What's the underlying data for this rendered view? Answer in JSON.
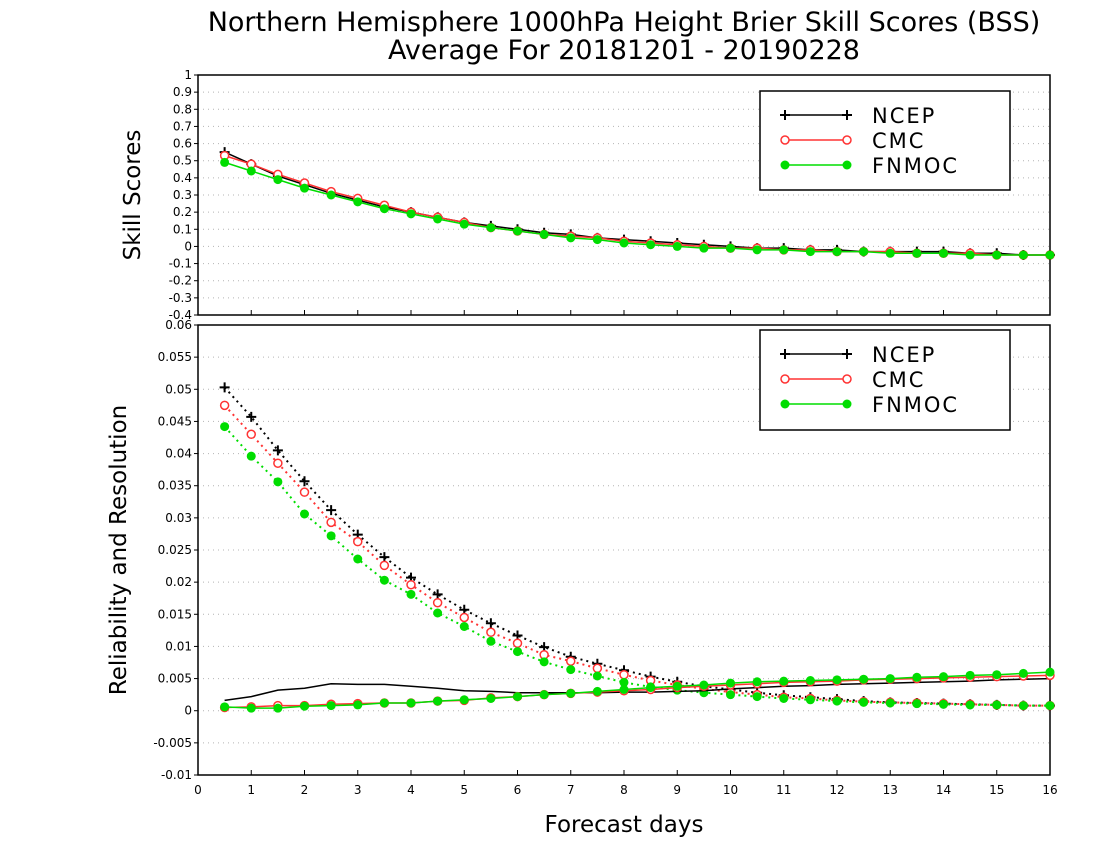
{
  "title_line1": "Northern Hemisphere 1000hPa Height Brier Skill Scores (BSS)",
  "title_line2": "Average For 20181201 - 20190228",
  "xlabel": "Forecast days",
  "series_colors": {
    "NCEP": "#000000",
    "CMC": "#ff3333",
    "FNMOC": "#00dd00"
  },
  "chart_data": [
    {
      "type": "line",
      "ylabel": "Skill Scores",
      "xlim": [
        0,
        16
      ],
      "ylim": [
        -0.4,
        1
      ],
      "yticks": [
        "-0.4",
        "-0.3",
        "-0.2",
        "-0.1",
        "0",
        "0.1",
        "0.2",
        "0.3",
        "0.4",
        "0.5",
        "0.6",
        "0.7",
        "0.8",
        "0.9",
        "1"
      ],
      "xticks": [
        "0",
        "1",
        "2",
        "3",
        "4",
        "5",
        "6",
        "7",
        "8",
        "9",
        "10",
        "11",
        "12",
        "13",
        "14",
        "15",
        "16"
      ],
      "grid": true,
      "legend_position": "top-right",
      "x": [
        0.5,
        1,
        1.5,
        2,
        2.5,
        3,
        3.5,
        4,
        4.5,
        5,
        5.5,
        6,
        6.5,
        7,
        7.5,
        8,
        8.5,
        9,
        9.5,
        10,
        10.5,
        11,
        11.5,
        12,
        12.5,
        13,
        13.5,
        14,
        14.5,
        15,
        15.5,
        16
      ],
      "series": [
        {
          "name": "NCEP",
          "marker": "plus",
          "line": "solid",
          "values": [
            0.55,
            0.48,
            0.41,
            0.36,
            0.31,
            0.27,
            0.23,
            0.2,
            0.17,
            0.14,
            0.12,
            0.1,
            0.08,
            0.07,
            0.05,
            0.04,
            0.03,
            0.02,
            0.01,
            0.0,
            -0.01,
            -0.01,
            -0.02,
            -0.02,
            -0.03,
            -0.03,
            -0.03,
            -0.03,
            -0.04,
            -0.04,
            -0.05,
            -0.05
          ]
        },
        {
          "name": "CMC",
          "marker": "open-circle",
          "line": "solid",
          "values": [
            0.53,
            0.48,
            0.42,
            0.37,
            0.32,
            0.28,
            0.24,
            0.2,
            0.17,
            0.14,
            0.11,
            0.09,
            0.07,
            0.06,
            0.05,
            0.03,
            0.02,
            0.01,
            0.0,
            -0.01,
            -0.01,
            -0.02,
            -0.02,
            -0.03,
            -0.03,
            -0.03,
            -0.04,
            -0.04,
            -0.04,
            -0.05,
            -0.05,
            -0.05
          ]
        },
        {
          "name": "FNMOC",
          "marker": "filled-circle",
          "line": "solid",
          "values": [
            0.49,
            0.44,
            0.39,
            0.34,
            0.3,
            0.26,
            0.22,
            0.19,
            0.16,
            0.13,
            0.11,
            0.09,
            0.07,
            0.05,
            0.04,
            0.02,
            0.01,
            0.0,
            -0.01,
            -0.01,
            -0.02,
            -0.02,
            -0.03,
            -0.03,
            -0.03,
            -0.04,
            -0.04,
            -0.04,
            -0.05,
            -0.05,
            -0.05,
            -0.05
          ]
        }
      ]
    },
    {
      "type": "line",
      "ylabel": "Reliability and Resolution",
      "xlim": [
        0,
        16
      ],
      "ylim": [
        -0.01,
        0.06
      ],
      "yticks": [
        "-0.01",
        "-0.005",
        "0",
        "0.005",
        "0.01",
        "0.015",
        "0.02",
        "0.025",
        "0.03",
        "0.035",
        "0.04",
        "0.045",
        "0.05",
        "0.055",
        "0.06"
      ],
      "xticks": [
        "0",
        "1",
        "2",
        "3",
        "4",
        "5",
        "6",
        "7",
        "8",
        "9",
        "10",
        "11",
        "12",
        "13",
        "14",
        "15",
        "16"
      ],
      "grid": true,
      "legend_position": "top-right",
      "x": [
        0.5,
        1,
        1.5,
        2,
        2.5,
        3,
        3.5,
        4,
        4.5,
        5,
        5.5,
        6,
        6.5,
        7,
        7.5,
        8,
        8.5,
        9,
        9.5,
        10,
        10.5,
        11,
        11.5,
        12,
        12.5,
        13,
        13.5,
        14,
        14.5,
        15,
        15.5,
        16
      ],
      "series": [
        {
          "name": "NCEP",
          "marker": "plus",
          "line": "dotted",
          "values": [
            0.0503,
            0.0457,
            0.0405,
            0.0357,
            0.0312,
            0.0274,
            0.0239,
            0.0207,
            0.0181,
            0.0157,
            0.0136,
            0.0117,
            0.0099,
            0.0084,
            0.0073,
            0.0063,
            0.0053,
            0.0045,
            0.0038,
            0.0033,
            0.0028,
            0.0024,
            0.0021,
            0.0018,
            0.0015,
            0.0013,
            0.0012,
            0.0011,
            0.001,
            0.0009,
            0.0008,
            0.0008
          ]
        },
        {
          "name": "CMC",
          "marker": "open-circle",
          "line": "dotted",
          "values": [
            0.0475,
            0.043,
            0.0385,
            0.034,
            0.0293,
            0.0263,
            0.0226,
            0.0196,
            0.0168,
            0.0145,
            0.0122,
            0.0105,
            0.0087,
            0.0077,
            0.0066,
            0.0056,
            0.0047,
            0.004,
            0.0034,
            0.0029,
            0.0025,
            0.0021,
            0.0019,
            0.0016,
            0.0014,
            0.0013,
            0.0012,
            0.0011,
            0.001,
            0.0009,
            0.0008,
            0.0008
          ]
        },
        {
          "name": "FNMOC",
          "marker": "filled-circle",
          "line": "dotted",
          "values": [
            0.0442,
            0.0396,
            0.0356,
            0.0306,
            0.0272,
            0.0236,
            0.0203,
            0.0181,
            0.0152,
            0.0131,
            0.0108,
            0.0092,
            0.0076,
            0.0064,
            0.0054,
            0.0044,
            0.0037,
            0.0032,
            0.0028,
            0.0025,
            0.0022,
            0.0019,
            0.0017,
            0.0015,
            0.0013,
            0.0012,
            0.0011,
            0.001,
            0.0009,
            0.0009,
            0.0008,
            0.0008
          ]
        },
        {
          "name": "NCEP",
          "marker": "none",
          "line": "solid",
          "legend": false,
          "values": [
            0.0016,
            0.0022,
            0.0032,
            0.0035,
            0.0042,
            0.0041,
            0.0041,
            0.0038,
            0.0035,
            0.0031,
            0.003,
            0.0028,
            0.0028,
            0.0028,
            0.0028,
            0.0029,
            0.0029,
            0.003,
            0.0031,
            0.0034,
            0.0036,
            0.0038,
            0.0039,
            0.0041,
            0.0042,
            0.0043,
            0.0044,
            0.0045,
            0.0046,
            0.0048,
            0.0049,
            0.005
          ]
        },
        {
          "name": "CMC",
          "marker": "open-circle",
          "line": "solid",
          "legend": false,
          "values": [
            0.0005,
            0.0006,
            0.0008,
            0.0008,
            0.001,
            0.0011,
            0.0012,
            0.0012,
            0.0015,
            0.0016,
            0.002,
            0.0022,
            0.0025,
            0.0027,
            0.0029,
            0.0031,
            0.0033,
            0.0036,
            0.0038,
            0.004,
            0.0042,
            0.0044,
            0.0045,
            0.0046,
            0.0048,
            0.0049,
            0.005,
            0.0051,
            0.0052,
            0.0053,
            0.0054,
            0.0055
          ]
        },
        {
          "name": "FNMOC",
          "marker": "filled-circle",
          "line": "solid",
          "legend": false,
          "values": [
            0.0006,
            0.0004,
            0.0004,
            0.0007,
            0.0008,
            0.0009,
            0.0012,
            0.0012,
            0.0015,
            0.0017,
            0.0019,
            0.0022,
            0.0025,
            0.0027,
            0.003,
            0.0033,
            0.0036,
            0.0038,
            0.004,
            0.0043,
            0.0045,
            0.0046,
            0.0047,
            0.0048,
            0.0049,
            0.005,
            0.0052,
            0.0053,
            0.0055,
            0.0056,
            0.0058,
            0.006
          ]
        }
      ]
    }
  ]
}
